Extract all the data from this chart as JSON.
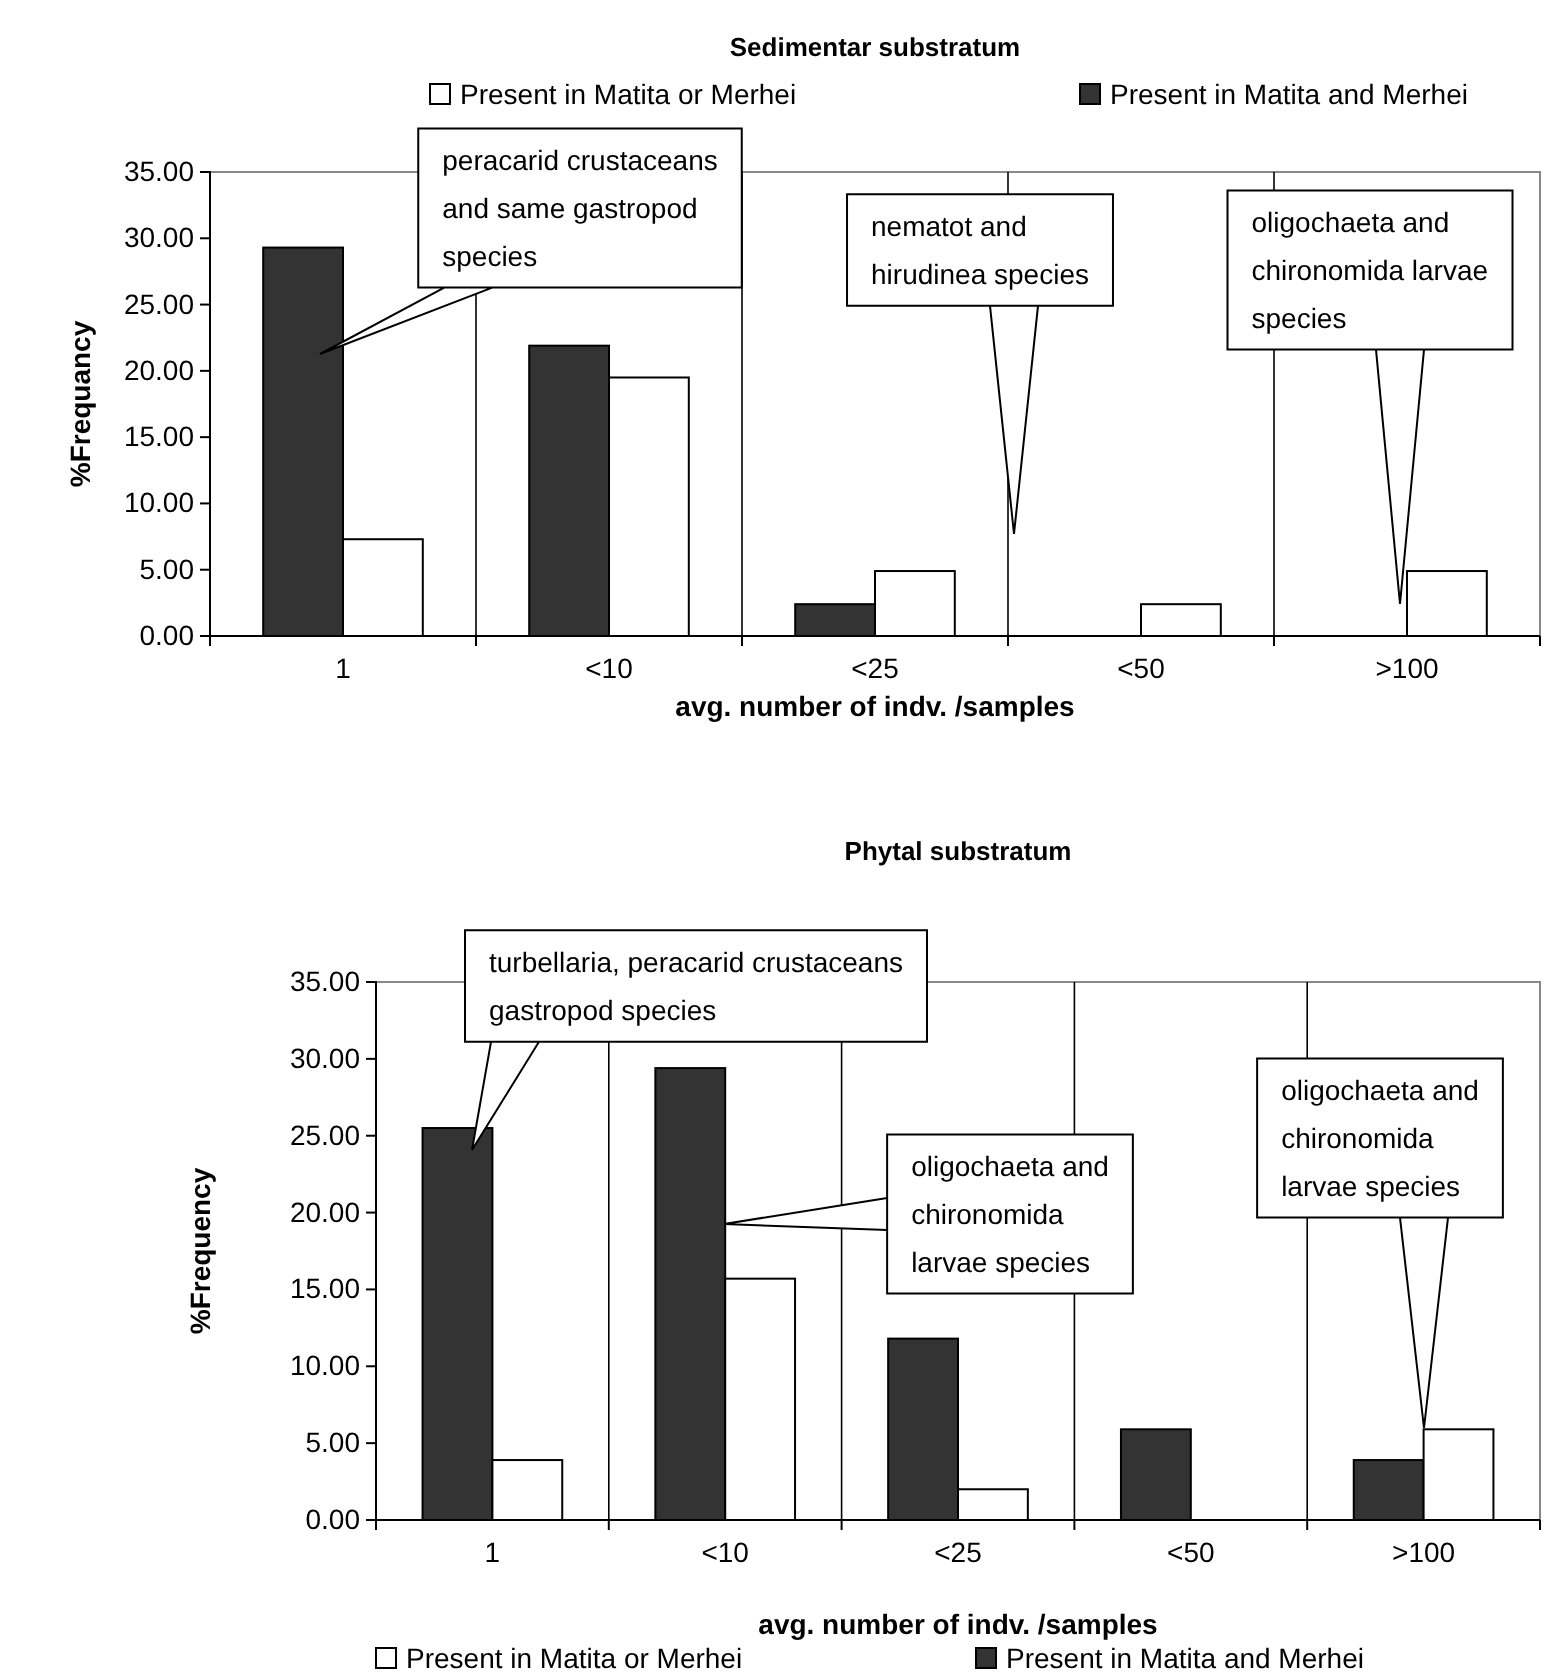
{
  "chart_data": [
    {
      "type": "bar",
      "title": "Sedimentar substratum",
      "xlabel": "avg. number of indv. /samples",
      "ylabel": "%Frequancy",
      "categories": [
        "1",
        "<10",
        "<25",
        "<50",
        ">100"
      ],
      "series": [
        {
          "name": "Present in Matita and Merhei",
          "color": "#333333",
          "values": [
            29.3,
            21.9,
            2.4,
            null,
            null
          ]
        },
        {
          "name": "Present in Matita or Merhei",
          "color": "#ffffff",
          "values": [
            7.3,
            19.5,
            4.9,
            2.4,
            4.9
          ]
        }
      ],
      "ylim": [
        0,
        35
      ],
      "yticks": [
        {
          "value": 0,
          "label": "0.00"
        },
        {
          "value": 5,
          "label": "5.00"
        },
        {
          "value": 10,
          "label": "10.00"
        },
        {
          "value": 15,
          "label": "15.00"
        },
        {
          "value": 20,
          "label": "20.00"
        },
        {
          "value": 25,
          "label": "25.00"
        },
        {
          "value": 30,
          "label": "30.00"
        },
        {
          "value": 35,
          "label": "35.00"
        }
      ],
      "grid": "x",
      "legend": "top",
      "annotations": [
        "peracarid crustaceans\nand same gastropod\nspecies",
        "nematot and\nhirudinea species",
        "oligochaeta and\nchironomida larvae\nspecies"
      ]
    },
    {
      "type": "bar",
      "title": "Phytal substratum",
      "xlabel": "avg. number of indv. /samples",
      "ylabel": "%Frequency",
      "categories": [
        "1",
        "<10",
        "<25",
        "<50",
        ">100"
      ],
      "series": [
        {
          "name": "Present in Matita and Merhei",
          "color": "#333333",
          "values": [
            25.5,
            29.4,
            11.8,
            5.9,
            3.9
          ]
        },
        {
          "name": "Present in Matita or Merhei",
          "color": "#ffffff",
          "values": [
            3.9,
            15.7,
            2.0,
            null,
            5.9
          ]
        }
      ],
      "ylim": [
        0,
        35
      ],
      "yticks": [
        {
          "value": 0,
          "label": "0.00"
        },
        {
          "value": 5,
          "label": "5.00"
        },
        {
          "value": 10,
          "label": "10.00"
        },
        {
          "value": 15,
          "label": "15.00"
        },
        {
          "value": 20,
          "label": "20.00"
        },
        {
          "value": 25,
          "label": "25.00"
        },
        {
          "value": 30,
          "label": "30.00"
        },
        {
          "value": 35,
          "label": "35.00"
        }
      ],
      "grid": "x",
      "legend": "bottom",
      "annotations": [
        "turbellaria, peracarid crustaceans\ngastropod species",
        "oligochaeta and\nchironomida\nlarvae species",
        "oligochaeta and\nchironomida\nlarvae species"
      ]
    }
  ]
}
